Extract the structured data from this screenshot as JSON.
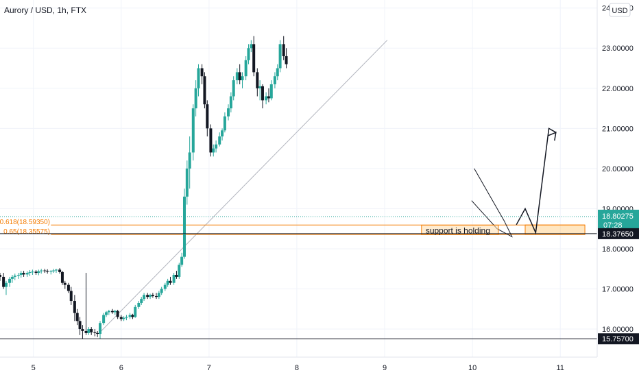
{
  "chart_data": {
    "type": "candlestick",
    "title": "Aurory / USD, 1h, FTX",
    "currency_badge": "USD",
    "x_ticks": [
      5,
      6,
      7,
      8,
      9,
      10,
      11
    ],
    "y_ticks": [
      "16.00000",
      "17.00000",
      "18.00000",
      "19.00000",
      "20.00000",
      "21.00000",
      "22.00000",
      "23.00000",
      "24.00000"
    ],
    "ylim": [
      15.3,
      24.2
    ],
    "xlim": [
      4.62,
      11.42
    ],
    "colors": {
      "up": "#26a69a",
      "down": "#131722",
      "fib": "#f57c00",
      "current": "#26a69a",
      "axis_text": "#131722"
    },
    "current_price": {
      "value": 18.80275,
      "label": "18.80275",
      "countdown": "07:28"
    },
    "level_tags": [
      {
        "value": 18.3765,
        "label": "18.37650"
      },
      {
        "value": 15.757,
        "label": "15.75700"
      }
    ],
    "fib_levels": [
      {
        "label": "0.618(18.59350)",
        "value": 18.5935
      },
      {
        "label": "0.65(18.35575)",
        "value": 18.35575
      }
    ],
    "annotation": "support is holding",
    "trendline": {
      "x1": 5.75,
      "y1": 15.9,
      "x2": 9.03,
      "y2": 23.2
    },
    "wedge": [
      [
        10.02,
        20.0
      ],
      [
        10.36,
        18.7
      ],
      [
        10.45,
        18.3
      ],
      [
        10.28,
        18.5
      ],
      [
        9.99,
        19.2
      ]
    ],
    "projection": [
      [
        10.5,
        18.6
      ],
      [
        10.6,
        19.0
      ],
      [
        10.72,
        18.4
      ],
      [
        10.87,
        21.0
      ],
      [
        10.95,
        20.9
      ]
    ],
    "candles": [
      [
        4.62,
        17.35,
        17.4,
        17.2,
        17.3
      ],
      [
        4.66,
        17.3,
        17.4,
        17.0,
        17.05
      ],
      [
        4.69,
        17.05,
        17.2,
        16.85,
        17.15
      ],
      [
        4.73,
        17.15,
        17.3,
        17.05,
        17.25
      ],
      [
        4.76,
        17.25,
        17.35,
        17.15,
        17.3
      ],
      [
        4.79,
        17.3,
        17.38,
        17.22,
        17.33
      ],
      [
        4.83,
        17.33,
        17.4,
        17.25,
        17.35
      ],
      [
        4.86,
        17.35,
        17.45,
        17.28,
        17.4
      ],
      [
        4.89,
        17.4,
        17.45,
        17.3,
        17.36
      ],
      [
        4.93,
        17.36,
        17.44,
        17.3,
        17.4
      ],
      [
        4.96,
        17.4,
        17.47,
        17.32,
        17.42
      ],
      [
        4.99,
        17.42,
        17.48,
        17.35,
        17.43
      ],
      [
        5.03,
        17.43,
        17.47,
        17.35,
        17.4
      ],
      [
        5.06,
        17.4,
        17.48,
        17.34,
        17.44
      ],
      [
        5.09,
        17.44,
        17.5,
        17.38,
        17.46
      ],
      [
        5.13,
        17.46,
        17.5,
        17.4,
        17.45
      ],
      [
        5.16,
        17.45,
        17.49,
        17.38,
        17.43
      ],
      [
        5.2,
        17.43,
        17.47,
        17.36,
        17.44
      ],
      [
        5.23,
        17.44,
        17.5,
        17.4,
        17.46
      ],
      [
        5.26,
        17.46,
        17.5,
        17.4,
        17.48
      ],
      [
        5.3,
        17.48,
        17.52,
        17.38,
        17.42
      ],
      [
        5.33,
        17.42,
        17.45,
        17.1,
        17.15
      ],
      [
        5.36,
        17.15,
        17.2,
        17.0,
        17.1
      ],
      [
        5.4,
        17.1,
        17.15,
        16.9,
        16.95
      ],
      [
        5.43,
        16.95,
        17.05,
        16.6,
        16.7
      ],
      [
        5.47,
        16.7,
        16.85,
        16.2,
        16.4
      ],
      [
        5.5,
        16.4,
        16.5,
        16.1,
        16.2
      ],
      [
        5.53,
        16.2,
        16.3,
        15.85,
        16.0
      ],
      [
        5.56,
        16.0,
        16.1,
        15.75,
        15.95
      ],
      [
        5.6,
        15.95,
        17.4,
        15.85,
        15.9
      ],
      [
        5.63,
        15.9,
        16.05,
        15.85,
        16.0
      ],
      [
        5.66,
        16.0,
        16.05,
        15.85,
        15.92
      ],
      [
        5.7,
        15.92,
        16.0,
        15.82,
        15.9
      ],
      [
        5.73,
        15.9,
        15.95,
        15.8,
        15.88
      ],
      [
        5.76,
        15.88,
        16.2,
        15.76,
        16.15
      ],
      [
        5.8,
        16.15,
        16.4,
        16.1,
        16.35
      ],
      [
        5.83,
        16.35,
        16.45,
        16.3,
        16.42
      ],
      [
        5.86,
        16.42,
        16.48,
        16.35,
        16.45
      ],
      [
        5.9,
        16.45,
        16.5,
        16.38,
        16.42
      ],
      [
        5.93,
        16.42,
        16.48,
        16.35,
        16.45
      ],
      [
        5.96,
        16.45,
        16.48,
        16.25,
        16.3
      ],
      [
        6.0,
        16.3,
        16.35,
        16.2,
        16.25
      ],
      [
        6.03,
        16.25,
        16.32,
        16.2,
        16.28
      ],
      [
        6.06,
        16.28,
        16.35,
        16.22,
        16.3
      ],
      [
        6.1,
        16.3,
        16.4,
        16.25,
        16.35
      ],
      [
        6.13,
        16.35,
        16.38,
        16.25,
        16.3
      ],
      [
        6.16,
        16.3,
        16.6,
        16.28,
        16.55
      ],
      [
        6.2,
        16.55,
        16.7,
        16.5,
        16.65
      ],
      [
        6.23,
        16.65,
        16.8,
        16.6,
        16.75
      ],
      [
        6.26,
        16.75,
        16.9,
        16.7,
        16.85
      ],
      [
        6.3,
        16.85,
        16.9,
        16.75,
        16.8
      ],
      [
        6.33,
        16.8,
        16.88,
        16.75,
        16.85
      ],
      [
        6.36,
        16.85,
        16.9,
        16.78,
        16.82
      ],
      [
        6.4,
        16.82,
        16.9,
        16.75,
        16.8
      ],
      [
        6.43,
        16.8,
        16.95,
        16.75,
        16.9
      ],
      [
        6.46,
        16.9,
        17.05,
        16.85,
        17.0
      ],
      [
        6.5,
        17.0,
        17.15,
        16.95,
        17.1
      ],
      [
        6.53,
        17.1,
        17.25,
        17.05,
        17.2
      ],
      [
        6.56,
        17.2,
        17.3,
        17.1,
        17.15
      ],
      [
        6.6,
        17.15,
        17.4,
        17.1,
        17.35
      ],
      [
        6.63,
        17.35,
        17.45,
        17.25,
        17.3
      ],
      [
        6.66,
        17.3,
        17.65,
        17.25,
        17.6
      ],
      [
        6.69,
        17.6,
        17.9,
        17.55,
        17.8
      ],
      [
        6.72,
        17.8,
        19.5,
        17.75,
        19.3
      ],
      [
        6.75,
        19.3,
        20.2,
        19.1,
        20.0
      ],
      [
        6.78,
        20.0,
        20.8,
        19.5,
        20.4
      ],
      [
        6.82,
        20.4,
        21.6,
        20.2,
        21.5
      ],
      [
        6.85,
        21.5,
        22.2,
        21.3,
        22.0
      ],
      [
        6.88,
        22.0,
        22.6,
        21.8,
        22.5
      ],
      [
        6.92,
        22.5,
        22.6,
        22.1,
        22.3
      ],
      [
        6.95,
        22.3,
        22.4,
        21.5,
        21.6
      ],
      [
        6.98,
        21.6,
        21.7,
        20.8,
        21.0
      ],
      [
        7.02,
        21.0,
        21.1,
        20.3,
        20.4
      ],
      [
        7.05,
        20.4,
        20.6,
        20.3,
        20.5
      ],
      [
        7.08,
        20.5,
        20.7,
        20.4,
        20.6
      ],
      [
        7.12,
        20.6,
        20.9,
        20.55,
        20.8
      ],
      [
        7.15,
        20.8,
        21.0,
        20.7,
        20.95
      ],
      [
        7.18,
        20.95,
        21.4,
        20.9,
        21.3
      ],
      [
        7.22,
        21.3,
        21.6,
        21.2,
        21.5
      ],
      [
        7.25,
        21.5,
        21.9,
        21.4,
        21.8
      ],
      [
        7.28,
        21.8,
        22.3,
        21.7,
        22.2
      ],
      [
        7.32,
        22.2,
        22.5,
        22.1,
        22.4
      ],
      [
        7.35,
        22.4,
        22.6,
        22.1,
        22.2
      ],
      [
        7.38,
        22.2,
        22.4,
        22.0,
        22.3
      ],
      [
        7.42,
        22.3,
        22.8,
        22.2,
        22.7
      ],
      [
        7.45,
        22.7,
        23.1,
        22.6,
        23.0
      ],
      [
        7.48,
        23.0,
        23.2,
        22.9,
        23.1
      ],
      [
        7.51,
        23.1,
        23.3,
        22.3,
        22.4
      ],
      [
        7.55,
        22.4,
        22.5,
        21.8,
        22.0
      ],
      [
        7.58,
        22.0,
        22.2,
        21.7,
        22.05
      ],
      [
        7.61,
        22.05,
        22.1,
        21.5,
        21.7
      ],
      [
        7.65,
        21.7,
        21.9,
        21.6,
        21.8
      ],
      [
        7.68,
        21.8,
        22.0,
        21.65,
        21.75
      ],
      [
        7.71,
        21.75,
        22.2,
        21.7,
        22.1
      ],
      [
        7.75,
        22.1,
        22.4,
        22.0,
        22.3
      ],
      [
        7.78,
        22.3,
        22.6,
        22.2,
        22.5
      ],
      [
        7.81,
        22.5,
        23.2,
        22.4,
        23.1
      ],
      [
        7.85,
        23.1,
        23.3,
        22.7,
        22.8
      ],
      [
        7.88,
        22.8,
        23.0,
        22.5,
        22.6
      ]
    ]
  }
}
